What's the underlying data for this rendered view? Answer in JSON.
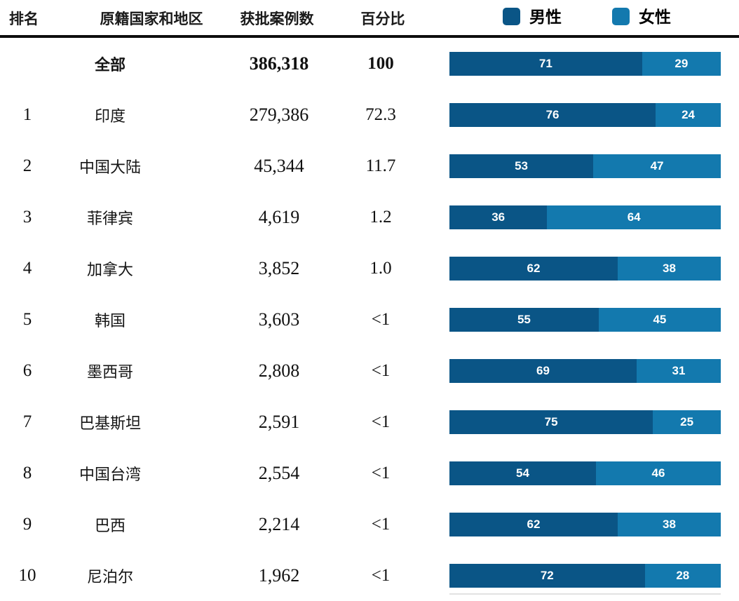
{
  "colors": {
    "male": "#0a5586",
    "female": "#1379ae"
  },
  "table": {
    "headers": {
      "rank": "排名",
      "country": "原籍国家和地区",
      "cases": "获批案例数",
      "percent": "百分比"
    },
    "rows": [
      {
        "rank": "",
        "country": "全部",
        "cases": "386,318",
        "percent": "100",
        "male": 71,
        "female": 29,
        "bold": true
      },
      {
        "rank": "1",
        "country": "印度",
        "cases": "279,386",
        "percent": "72.3",
        "male": 76,
        "female": 24,
        "bold": false
      },
      {
        "rank": "2",
        "country": "中国大陆",
        "cases": "45,344",
        "percent": "11.7",
        "male": 53,
        "female": 47,
        "bold": false
      },
      {
        "rank": "3",
        "country": "菲律宾",
        "cases": "4,619",
        "percent": "1.2",
        "male": 36,
        "female": 64,
        "bold": false
      },
      {
        "rank": "4",
        "country": "加拿大",
        "cases": "3,852",
        "percent": "1.0",
        "male": 62,
        "female": 38,
        "bold": false
      },
      {
        "rank": "5",
        "country": "韩国",
        "cases": "3,603",
        "percent": "<1",
        "male": 55,
        "female": 45,
        "bold": false
      },
      {
        "rank": "6",
        "country": "墨西哥",
        "cases": "2,808",
        "percent": "<1",
        "male": 69,
        "female": 31,
        "bold": false
      },
      {
        "rank": "7",
        "country": "巴基斯坦",
        "cases": "2,591",
        "percent": "<1",
        "male": 75,
        "female": 25,
        "bold": false
      },
      {
        "rank": "8",
        "country": "中国台湾",
        "cases": "2,554",
        "percent": "<1",
        "male": 54,
        "female": 46,
        "bold": false
      },
      {
        "rank": "9",
        "country": "巴西",
        "cases": "2,214",
        "percent": "<1",
        "male": 62,
        "female": 38,
        "bold": false
      },
      {
        "rank": "10",
        "country": "尼泊尔",
        "cases": "1,962",
        "percent": "<1",
        "male": 72,
        "female": 28,
        "bold": false
      }
    ]
  },
  "legend": {
    "male_label": "男性",
    "female_label": "女性"
  },
  "chart_data": {
    "type": "bar",
    "orientation": "horizontal",
    "stacked": true,
    "categories": [
      "全部",
      "印度",
      "中国大陆",
      "菲律宾",
      "加拿大",
      "韩国",
      "墨西哥",
      "巴基斯坦",
      "中国台湾",
      "巴西",
      "尼泊尔"
    ],
    "series": [
      {
        "name": "男性",
        "color": "#0a5586",
        "values": [
          71,
          76,
          53,
          36,
          62,
          55,
          69,
          75,
          54,
          62,
          72
        ]
      },
      {
        "name": "女性",
        "color": "#1379ae",
        "values": [
          29,
          24,
          47,
          64,
          38,
          45,
          31,
          25,
          46,
          38,
          28
        ]
      }
    ],
    "ranks": [
      "",
      "1",
      "2",
      "3",
      "4",
      "5",
      "6",
      "7",
      "8",
      "9",
      "10"
    ],
    "approved_cases": [
      386318,
      279386,
      45344,
      4619,
      3852,
      3603,
      2808,
      2591,
      2554,
      2214,
      1962
    ],
    "percent_of_total": [
      "100",
      "72.3",
      "11.7",
      "1.2",
      "1.0",
      "<1",
      "<1",
      "<1",
      "<1",
      "<1",
      "<1"
    ],
    "xlim": [
      0,
      100
    ],
    "legend_position": "top-right",
    "data_labels": "inside-segment",
    "grid": false
  }
}
